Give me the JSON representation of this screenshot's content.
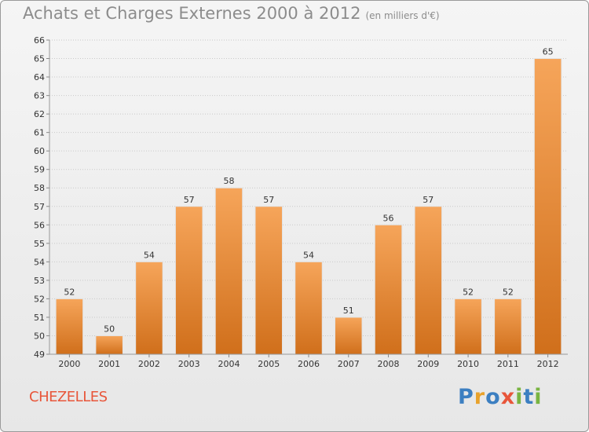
{
  "header": {
    "title": "Achats et Charges Externes 2000 à 2012",
    "subtitle": "(en milliers d'€)"
  },
  "footer": {
    "commune": "CHEZELLES",
    "logo_text": "Proxiti"
  },
  "colors": {
    "bar_top": "#f6a55a",
    "bar_bottom": "#d06f1b",
    "grid": "#c9c9c9",
    "axis_text": "#333333",
    "commune": "#e8563a"
  },
  "logo_letters": [
    {
      "char": "P",
      "color": "#3c7fc1"
    },
    {
      "char": "r",
      "color": "#e8a22c"
    },
    {
      "char": "o",
      "color": "#3c7fc1"
    },
    {
      "char": "x",
      "color": "#e8563a"
    },
    {
      "char": "i",
      "color": "#79b441"
    },
    {
      "char": "t",
      "color": "#3c7fc1"
    },
    {
      "char": "i",
      "color": "#79b441"
    }
  ],
  "chart_data": {
    "type": "bar",
    "categories": [
      "2000",
      "2001",
      "2002",
      "2003",
      "2004",
      "2005",
      "2006",
      "2007",
      "2008",
      "2009",
      "2010",
      "2011",
      "2012"
    ],
    "values": [
      52,
      50,
      54,
      57,
      58,
      57,
      54,
      51,
      56,
      57,
      52,
      52,
      65
    ],
    "ylim": [
      49,
      66
    ],
    "yticks": [
      49,
      50,
      51,
      52,
      53,
      54,
      55,
      56,
      57,
      58,
      59,
      60,
      61,
      62,
      63,
      64,
      65,
      66
    ],
    "grid": true,
    "legend": "none"
  }
}
